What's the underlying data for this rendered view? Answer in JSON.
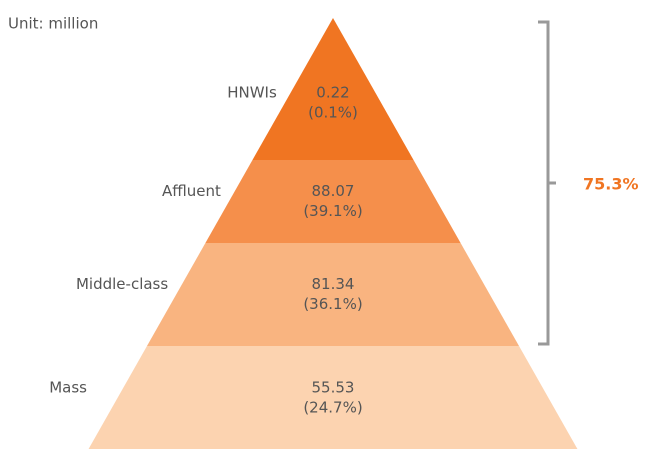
{
  "chart_data": {
    "type": "pyramid",
    "unit_label": "Unit: million",
    "categories": [
      "HNWIs",
      "Affluent",
      "Middle-class",
      "Mass"
    ],
    "values": [
      0.22,
      88.07,
      81.34,
      55.53
    ],
    "shares": [
      0.1,
      39.1,
      36.1,
      24.7
    ],
    "share_labels": [
      "(0.1%)",
      "(39.1%)",
      "(36.1%)",
      "(24.7%)"
    ],
    "colors": [
      "#f07522",
      "#f58f4b",
      "#f9b480",
      "#fcd3b0"
    ],
    "bracket_label": "75.3%",
    "bracket_color": "#f07522"
  }
}
